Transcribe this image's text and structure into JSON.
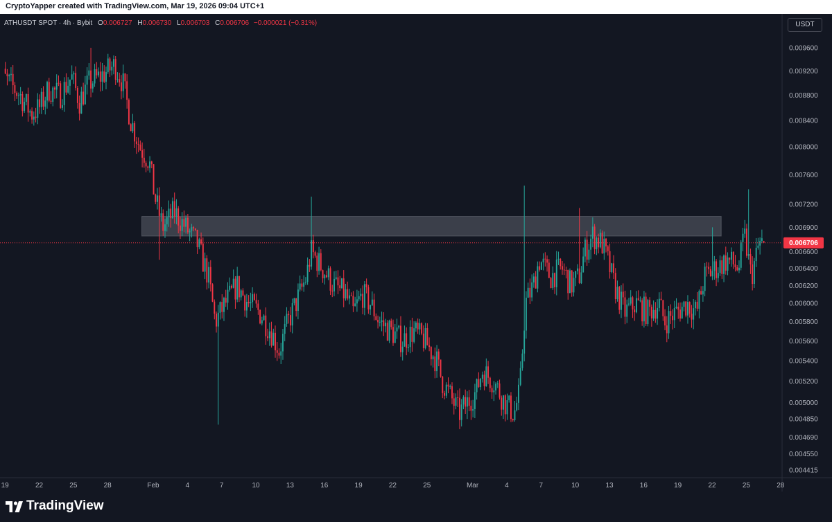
{
  "header": {
    "attribution": "CryptoYapper created with TradingView.com, Mar 19, 2026 09:04 UTC+1"
  },
  "legend": {
    "symbol": "ATHUSDT SPOT · 4h · Bybit",
    "o_label": "O",
    "o_value": "0.006727",
    "h_label": "H",
    "h_value": "0.006730",
    "l_label": "L",
    "l_value": "0.006703",
    "c_label": "C",
    "c_value": "0.006706",
    "change": "−0.000021 (−0.31%)"
  },
  "toolbar": {
    "currency": "USDT"
  },
  "footer": {
    "brand": "TradingView"
  },
  "colors": {
    "up": "#26a69a",
    "down": "#f23645",
    "zone": "#5d606b",
    "price_line": "#f23645",
    "axis_text": "#b2b5be",
    "background": "#131722"
  },
  "chart_data": {
    "type": "candlestick",
    "timeframe": "4h",
    "price_scale": "log",
    "current_price": {
      "value": 0.006706,
      "label": "0.006706"
    },
    "y_ticks": [
      "0.009600",
      "0.009200",
      "0.008800",
      "0.008400",
      "0.008000",
      "0.007600",
      "0.007200",
      "0.006900",
      "0.006600",
      "0.006400",
      "0.006200",
      "0.006000",
      "0.005800",
      "0.005600",
      "0.005400",
      "0.005200",
      "0.005000",
      "0.004850",
      "0.004690",
      "0.004550",
      "0.004415"
    ],
    "x_ticks": [
      "19",
      "22",
      "25",
      "28",
      "Feb",
      "4",
      "7",
      "10",
      "13",
      "16",
      "19",
      "22",
      "25",
      "Mar",
      "4",
      "7",
      "10",
      "13",
      "16",
      "19",
      "22",
      "25",
      "28"
    ],
    "x_tick_days": [
      -13,
      -10,
      -7,
      -4,
      0,
      3,
      6,
      9,
      12,
      15,
      18,
      21,
      24,
      28,
      31,
      34,
      37,
      40,
      43,
      46,
      49,
      52,
      55
    ],
    "zone": {
      "low": 0.00679,
      "high": 0.00704
    },
    "anchors": [
      [
        -13.8,
        0.0099
      ],
      [
        -13.5,
        0.0092
      ],
      [
        -12.5,
        0.009
      ],
      [
        -11.5,
        0.0088
      ],
      [
        -10.5,
        0.0085
      ],
      [
        -9.8,
        0.0086
      ],
      [
        -9.0,
        0.0089
      ],
      [
        -8.0,
        0.0088
      ],
      [
        -7.0,
        0.0091
      ],
      [
        -6.3,
        0.0087
      ],
      [
        -5.5,
        0.009
      ],
      [
        -4.5,
        0.0091
      ],
      [
        -3.2,
        0.0093
      ],
      [
        -2.5,
        0.009
      ],
      [
        -1.8,
        0.0084
      ],
      [
        -1.0,
        0.008
      ],
      [
        -0.2,
        0.0078
      ],
      [
        0.3,
        0.0073
      ],
      [
        1.0,
        0.0069
      ],
      [
        2.0,
        0.0071
      ],
      [
        3.0,
        0.0069
      ],
      [
        4.0,
        0.0067
      ],
      [
        5.0,
        0.0063
      ],
      [
        5.6,
        0.0058
      ],
      [
        6.5,
        0.006
      ],
      [
        7.5,
        0.0062
      ],
      [
        8.5,
        0.006
      ],
      [
        9.5,
        0.0059
      ],
      [
        10.5,
        0.0057
      ],
      [
        11.2,
        0.0055
      ],
      [
        12.0,
        0.0058
      ],
      [
        13.0,
        0.0061
      ],
      [
        13.6,
        0.0063
      ],
      [
        14.0,
        0.0066
      ],
      [
        15.0,
        0.0064
      ],
      [
        16.0,
        0.0062
      ],
      [
        17.0,
        0.0061
      ],
      [
        17.7,
        0.0059
      ],
      [
        18.5,
        0.0061
      ],
      [
        19.2,
        0.006
      ],
      [
        20.0,
        0.0058
      ],
      [
        21.0,
        0.0057
      ],
      [
        22.0,
        0.0056
      ],
      [
        23.0,
        0.0057
      ],
      [
        24.0,
        0.0056
      ],
      [
        25.0,
        0.0054
      ],
      [
        25.5,
        0.0052
      ],
      [
        26.0,
        0.0051
      ],
      [
        27.0,
        0.0049
      ],
      [
        27.7,
        0.005
      ],
      [
        28.5,
        0.0051
      ],
      [
        29.0,
        0.0053
      ],
      [
        30.0,
        0.0052
      ],
      [
        31.0,
        0.005
      ],
      [
        31.8,
        0.0049
      ],
      [
        32.3,
        0.0051
      ],
      [
        32.8,
        0.006
      ],
      [
        33.5,
        0.0062
      ],
      [
        34.0,
        0.0065
      ],
      [
        35.0,
        0.0063
      ],
      [
        36.0,
        0.0064
      ],
      [
        36.8,
        0.0062
      ],
      [
        37.5,
        0.0063
      ],
      [
        38.0,
        0.0066
      ],
      [
        38.7,
        0.0068
      ],
      [
        39.5,
        0.0067
      ],
      [
        40.0,
        0.0065
      ],
      [
        40.6,
        0.0062
      ],
      [
        41.5,
        0.0059
      ],
      [
        42.5,
        0.006
      ],
      [
        43.5,
        0.0059
      ],
      [
        44.5,
        0.006
      ],
      [
        45.0,
        0.0058
      ],
      [
        46.0,
        0.0059
      ],
      [
        47.0,
        0.006
      ],
      [
        47.8,
        0.0059
      ],
      [
        48.5,
        0.0063
      ],
      [
        49.5,
        0.0064
      ],
      [
        50.5,
        0.0065
      ],
      [
        51.5,
        0.0064
      ],
      [
        52.0,
        0.0068
      ],
      [
        52.6,
        0.0063
      ],
      [
        53.3,
        0.0067
      ],
      [
        53.6,
        0.0067
      ]
    ],
    "spikes": [
      {
        "day": -13.5,
        "high": 0.0099
      },
      {
        "day": -5.5,
        "high": 0.0096
      },
      {
        "day": 0.6,
        "high": 0.0073,
        "low": 0.0065
      },
      {
        "day": 5.7,
        "low": 0.0048
      },
      {
        "day": 13.8,
        "high": 0.0073
      },
      {
        "day": 32.6,
        "high": 0.00745
      },
      {
        "day": 37.4,
        "high": 0.00715
      },
      {
        "day": 52.2,
        "high": 0.0074
      },
      {
        "day": 49.0,
        "high": 0.0069
      },
      {
        "day": 27.5,
        "low": 0.00485
      }
    ]
  }
}
